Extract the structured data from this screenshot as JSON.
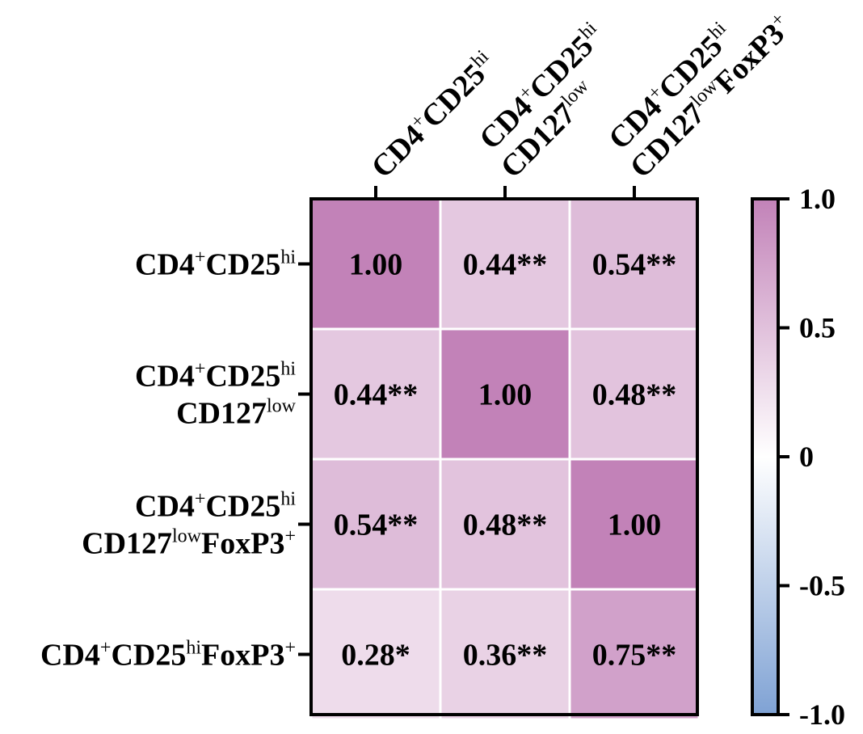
{
  "chart_data": {
    "type": "heatmap",
    "columns": [
      {
        "lines": [
          [
            {
              "t": "CD4"
            },
            {
              "t": "+",
              "sup": true
            },
            {
              "t": "CD25"
            },
            {
              "t": "hi",
              "sup": true
            }
          ]
        ]
      },
      {
        "lines": [
          [
            {
              "t": "CD4"
            },
            {
              "t": "+",
              "sup": true
            },
            {
              "t": "CD25"
            },
            {
              "t": "hi",
              "sup": true
            }
          ],
          [
            {
              "t": "CD127"
            },
            {
              "t": "low",
              "sup": true
            }
          ]
        ]
      },
      {
        "lines": [
          [
            {
              "t": "CD4"
            },
            {
              "t": "+",
              "sup": true
            },
            {
              "t": "CD25"
            },
            {
              "t": "hi",
              "sup": true
            }
          ],
          [
            {
              "t": "CD127"
            },
            {
              "t": "low",
              "sup": true
            },
            {
              "t": "FoxP3"
            },
            {
              "t": "+",
              "sup": true
            }
          ]
        ]
      }
    ],
    "rows": [
      {
        "lines": [
          [
            {
              "t": "CD4"
            },
            {
              "t": "+",
              "sup": true
            },
            {
              "t": "CD25"
            },
            {
              "t": "hi",
              "sup": true
            }
          ]
        ]
      },
      {
        "lines": [
          [
            {
              "t": "CD4"
            },
            {
              "t": "+",
              "sup": true
            },
            {
              "t": "CD25"
            },
            {
              "t": "hi",
              "sup": true
            }
          ],
          [
            {
              "t": "CD127"
            },
            {
              "t": "low",
              "sup": true
            }
          ]
        ]
      },
      {
        "lines": [
          [
            {
              "t": "CD4"
            },
            {
              "t": "+",
              "sup": true
            },
            {
              "t": "CD25"
            },
            {
              "t": "hi",
              "sup": true
            }
          ],
          [
            {
              "t": "CD127"
            },
            {
              "t": "low",
              "sup": true
            },
            {
              "t": "FoxP3"
            },
            {
              "t": "+",
              "sup": true
            }
          ]
        ]
      },
      {
        "lines": [
          [
            {
              "t": "CD4"
            },
            {
              "t": "+",
              "sup": true
            },
            {
              "t": "CD25"
            },
            {
              "t": "hi",
              "sup": true
            },
            {
              "t": "FoxP3"
            },
            {
              "t": "+",
              "sup": true
            }
          ]
        ]
      }
    ],
    "values": [
      [
        1.0,
        0.44,
        0.54
      ],
      [
        0.44,
        1.0,
        0.48
      ],
      [
        0.54,
        0.48,
        1.0
      ],
      [
        0.28,
        0.36,
        0.75
      ]
    ],
    "labels": [
      [
        "1.00",
        "0.44**",
        "0.54**"
      ],
      [
        "0.44**",
        "1.00",
        "0.48**"
      ],
      [
        "0.54**",
        "0.48**",
        "1.00"
      ],
      [
        "0.28*",
        "0.36**",
        "0.75**"
      ]
    ],
    "colorbar": {
      "min": -1.0,
      "max": 1.0,
      "ticks": [
        1.0,
        0.5,
        0,
        -0.5,
        -1.0
      ],
      "tick_labels": [
        "1.0",
        "0.5",
        "0",
        "-0.5",
        "-1.0"
      ],
      "colors": {
        "low": "#7fa2d4",
        "mid": "#ffffff",
        "high": "#c282b8"
      }
    }
  }
}
